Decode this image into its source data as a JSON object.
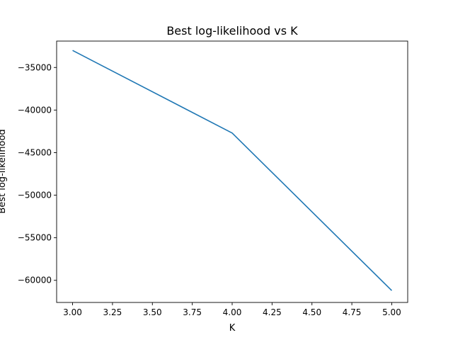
{
  "chart_data": {
    "type": "line",
    "title": "Best log-likelihood vs K",
    "xlabel": "K",
    "ylabel": "Best log-likelihood",
    "x": [
      3,
      4,
      5
    ],
    "series": [
      {
        "values": [
          -33000,
          -42700,
          -61200
        ]
      }
    ],
    "xlim": [
      2.9,
      5.1
    ],
    "ylim": [
      -62600,
      -31900
    ],
    "xticks": [
      3.0,
      3.25,
      3.5,
      3.75,
      4.0,
      4.25,
      4.5,
      4.75,
      5.0
    ],
    "xtick_labels": [
      "3.00",
      "3.25",
      "3.50",
      "3.75",
      "4.00",
      "4.25",
      "4.50",
      "4.75",
      "5.00"
    ],
    "yticks": [
      -35000,
      -40000,
      -45000,
      -50000,
      -55000,
      -60000
    ],
    "ytick_labels": [
      "−35000",
      "−40000",
      "−45000",
      "−50000",
      "−55000",
      "−60000"
    ],
    "grid": false,
    "line_color": "#1f77b4"
  }
}
